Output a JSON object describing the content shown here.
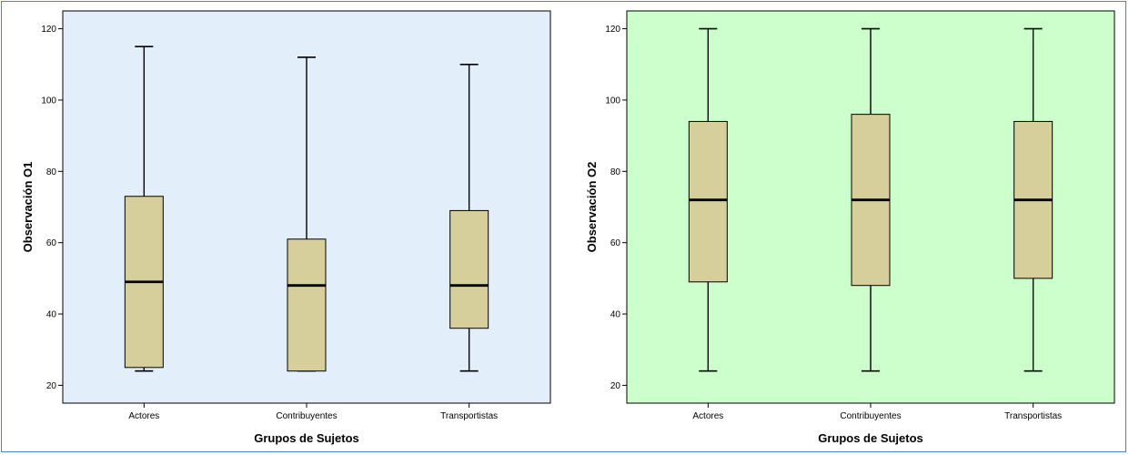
{
  "chart_data": [
    {
      "type": "boxplot",
      "xlabel": "Grupos de Sujetos",
      "ylabel": "Observación O1",
      "ylim": [
        15,
        125
      ],
      "yticks": [
        20,
        40,
        60,
        80,
        100,
        120
      ],
      "plot_background": "#e3eefb",
      "box_color": "#d6cf9c",
      "categories": [
        "Actores",
        "Contribuyentes",
        "Transportistas"
      ],
      "boxes": [
        {
          "label": "Actores",
          "min": 24,
          "q1": 25,
          "median": 49,
          "q3": 73,
          "max": 115
        },
        {
          "label": "Contribuyentes",
          "min": 24,
          "q1": 24,
          "median": 48,
          "q3": 61,
          "max": 112
        },
        {
          "label": "Transportistas",
          "min": 24,
          "q1": 36,
          "median": 48,
          "q3": 69,
          "max": 110
        }
      ]
    },
    {
      "type": "boxplot",
      "xlabel": "Grupos de Sujetos",
      "ylabel": "Observación O2",
      "ylim": [
        15,
        125
      ],
      "yticks": [
        20,
        40,
        60,
        80,
        100,
        120
      ],
      "plot_background": "#ccffcc",
      "box_color": "#d6cf9c",
      "categories": [
        "Actores",
        "Contribuyentes",
        "Transportistas"
      ],
      "boxes": [
        {
          "label": "Actores",
          "min": 24,
          "q1": 49,
          "median": 72,
          "q3": 94,
          "max": 120
        },
        {
          "label": "Contribuyentes",
          "min": 24,
          "q1": 48,
          "median": 72,
          "q3": 96,
          "max": 120
        },
        {
          "label": "Transportistas",
          "min": 24,
          "q1": 50,
          "median": 72,
          "q3": 94,
          "max": 120
        }
      ]
    }
  ]
}
